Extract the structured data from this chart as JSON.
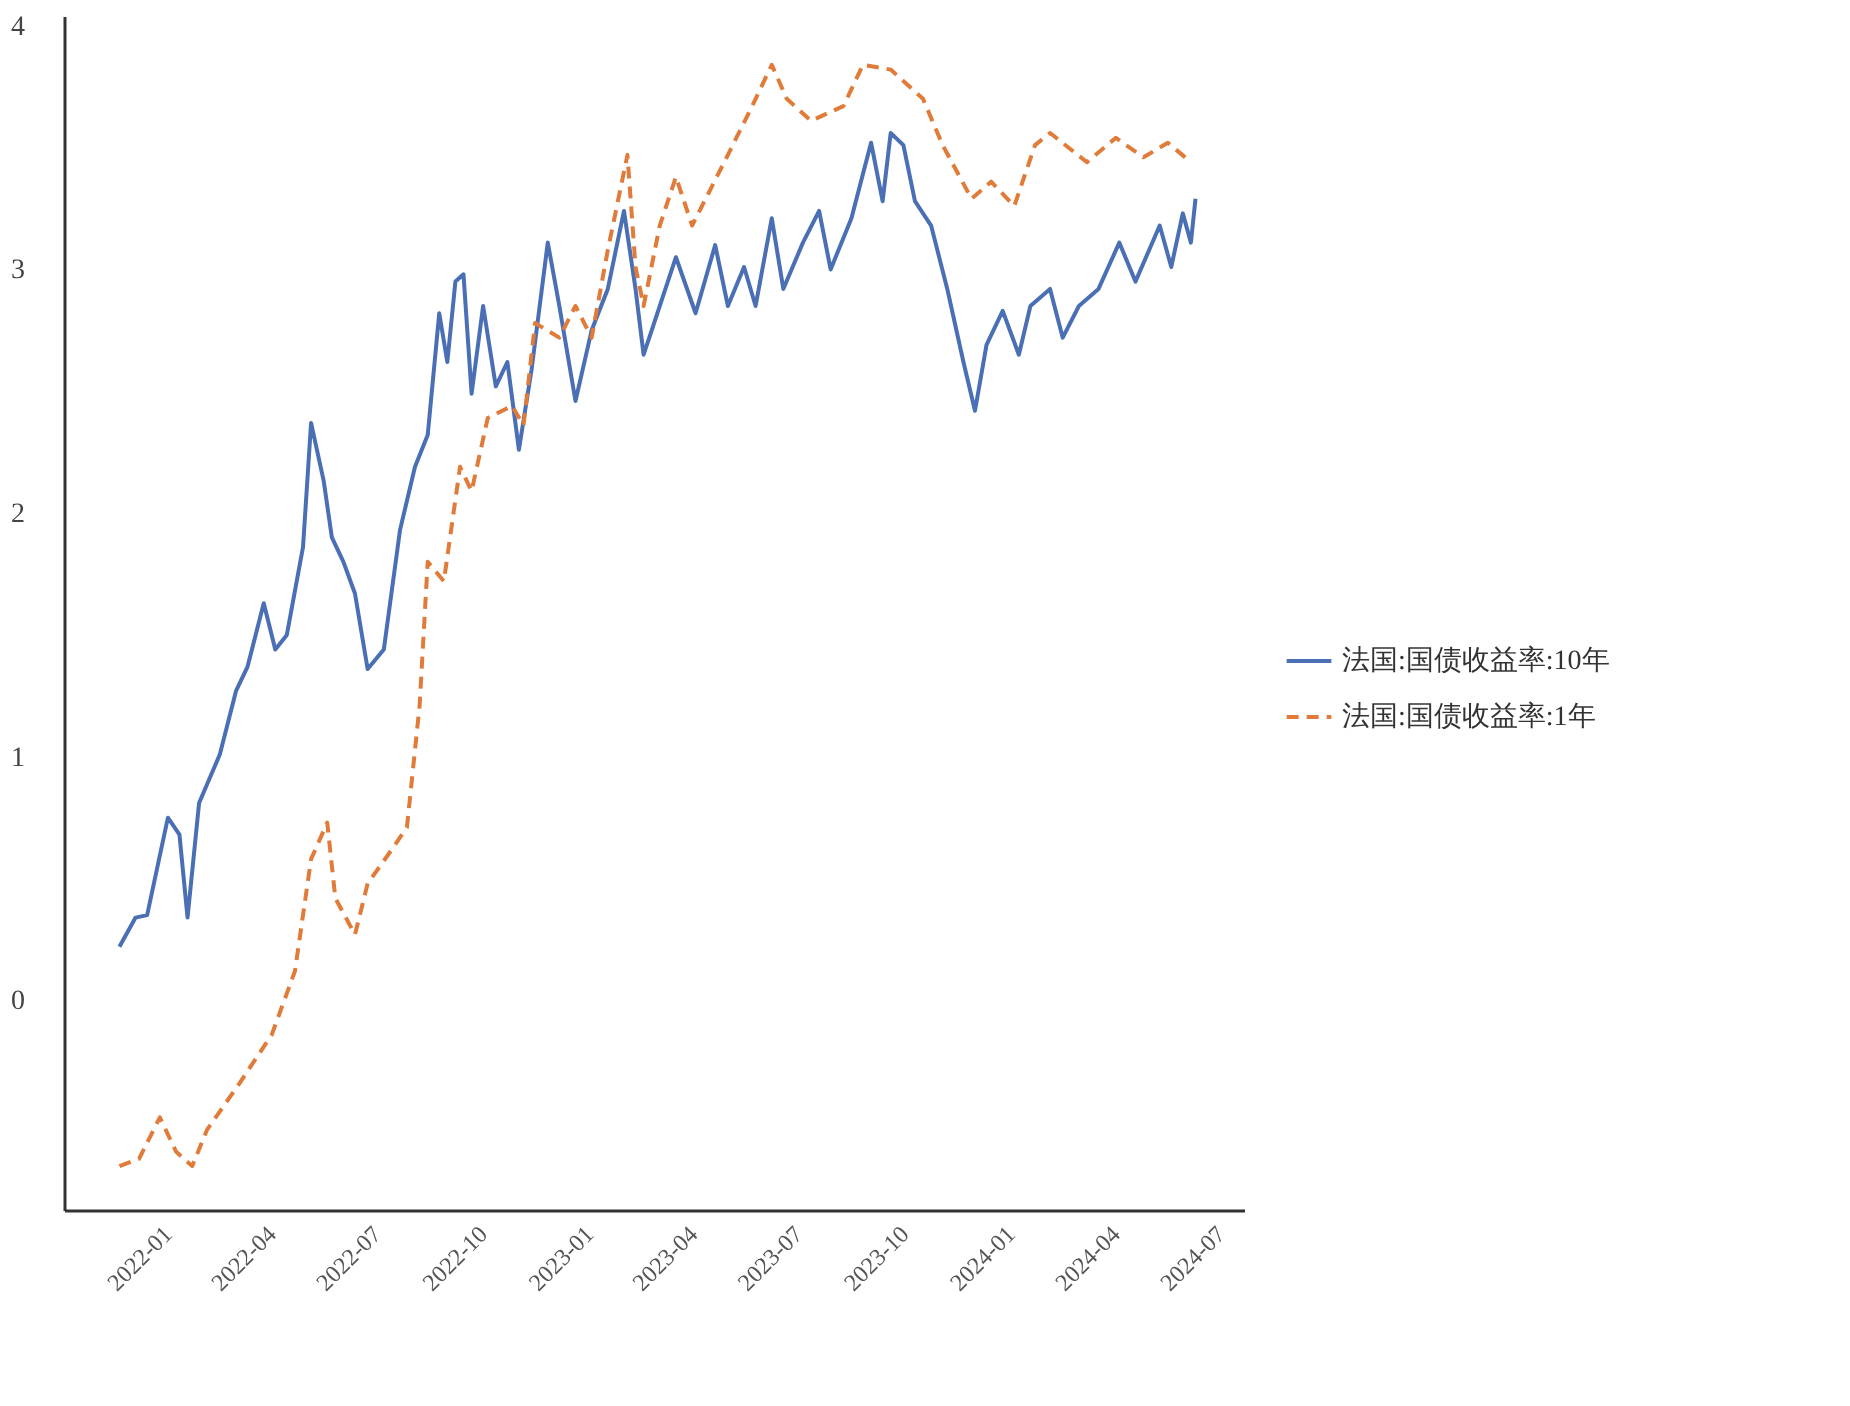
{
  "chart_data": {
    "type": "line",
    "legend": "right",
    "grid": false,
    "marker": "none",
    "xlim": [
      "2021-10-10",
      "2024-07-28"
    ],
    "xticks": [
      "2022-01",
      "2022-04",
      "2022-07",
      "2022-10",
      "2023-01",
      "2023-04",
      "2023-07",
      "2023-10",
      "2024-01",
      "2024-04",
      "2024-07"
    ],
    "ylim": [
      -0.86,
      4.04
    ],
    "yticks": [
      0,
      1,
      2,
      3,
      4
    ],
    "series": [
      {
        "name": "法国:国债收益率:10年",
        "color": "#4a6fb5",
        "line_style": "solid",
        "x": [
          "2021-11-27",
          "2021-12-11",
          "2021-12-21",
          "2022-01-08",
          "2022-01-18",
          "2022-01-25",
          "2022-02-04",
          "2022-02-22",
          "2022-03-08",
          "2022-03-18",
          "2022-04-01",
          "2022-04-11",
          "2022-04-21",
          "2022-05-05",
          "2022-05-12",
          "2022-05-23",
          "2022-05-30",
          "2022-06-09",
          "2022-06-19",
          "2022-06-30",
          "2022-07-14",
          "2022-07-28",
          "2022-08-10",
          "2022-08-21",
          "2022-08-31",
          "2022-09-07",
          "2022-09-14",
          "2022-09-21",
          "2022-09-28",
          "2022-10-08",
          "2022-10-19",
          "2022-10-29",
          "2022-11-08",
          "2022-11-19",
          "2022-12-03",
          "2022-12-13",
          "2022-12-27",
          "2023-01-10",
          "2023-01-24",
          "2023-02-07",
          "2023-02-17",
          "2023-02-24",
          "2023-03-03",
          "2023-03-24",
          "2023-04-10",
          "2023-04-27",
          "2023-05-08",
          "2023-05-22",
          "2023-06-01",
          "2023-06-15",
          "2023-06-25",
          "2023-07-12",
          "2023-07-26",
          "2023-08-05",
          "2023-08-23",
          "2023-09-09",
          "2023-09-19",
          "2023-09-26",
          "2023-10-07",
          "2023-10-17",
          "2023-10-31",
          "2023-11-14",
          "2023-11-28",
          "2023-12-08",
          "2023-12-18",
          "2024-01-01",
          "2024-01-15",
          "2024-01-25",
          "2024-02-11",
          "2024-02-22",
          "2024-03-07",
          "2024-03-24",
          "2024-04-11",
          "2024-04-25",
          "2024-05-16",
          "2024-05-26",
          "2024-06-05",
          "2024-06-12",
          "2024-06-16"
        ],
        "values": [
          0.22,
          0.34,
          0.35,
          0.75,
          0.68,
          0.34,
          0.81,
          1.01,
          1.27,
          1.37,
          1.63,
          1.44,
          1.5,
          1.86,
          2.37,
          2.13,
          1.9,
          1.8,
          1.67,
          1.36,
          1.44,
          1.93,
          2.19,
          2.32,
          2.82,
          2.62,
          2.95,
          2.98,
          2.49,
          2.85,
          2.52,
          2.62,
          2.26,
          2.59,
          3.11,
          2.85,
          2.46,
          2.75,
          2.92,
          3.24,
          2.92,
          2.65,
          2.75,
          3.05,
          2.82,
          3.1,
          2.85,
          3.01,
          2.85,
          3.21,
          2.92,
          3.11,
          3.24,
          3.0,
          3.21,
          3.52,
          3.28,
          3.56,
          3.51,
          3.28,
          3.18,
          2.92,
          2.62,
          2.42,
          2.69,
          2.83,
          2.65,
          2.85,
          2.92,
          2.72,
          2.85,
          2.92,
          3.11,
          2.95,
          3.18,
          3.01,
          3.23,
          3.11,
          3.29
        ]
      },
      {
        "name": "法国:国债收益率:1年",
        "color": "#e07b39",
        "line_style": "dashed",
        "x": [
          "2021-11-27",
          "2021-12-14",
          "2022-01-01",
          "2022-01-15",
          "2022-01-29",
          "2022-02-11",
          "2022-03-11",
          "2022-04-08",
          "2022-04-28",
          "2022-05-12",
          "2022-05-26",
          "2022-06-02",
          "2022-06-19",
          "2022-06-30",
          "2022-07-21",
          "2022-08-03",
          "2022-08-14",
          "2022-08-21",
          "2022-09-04",
          "2022-09-18",
          "2022-09-28",
          "2022-10-12",
          "2022-11-02",
          "2022-11-12",
          "2022-11-22",
          "2022-12-13",
          "2022-12-27",
          "2023-01-10",
          "2023-01-24",
          "2023-02-10",
          "2023-02-17",
          "2023-02-24",
          "2023-03-10",
          "2023-03-24",
          "2023-04-07",
          "2023-05-08",
          "2023-05-29",
          "2023-06-15",
          "2023-06-28",
          "2023-07-19",
          "2023-08-16",
          "2023-09-02",
          "2023-09-26",
          "2023-10-24",
          "2023-11-10",
          "2023-12-05",
          "2023-12-22",
          "2024-01-11",
          "2024-01-29",
          "2024-02-11",
          "2024-03-14",
          "2024-04-08",
          "2024-05-02",
          "2024-05-23",
          "2024-06-12"
        ],
        "values": [
          -0.68,
          -0.65,
          -0.48,
          -0.62,
          -0.68,
          -0.53,
          -0.34,
          -0.14,
          0.12,
          0.58,
          0.73,
          0.42,
          0.27,
          0.48,
          0.62,
          0.71,
          1.21,
          1.8,
          1.72,
          2.19,
          2.09,
          2.39,
          2.44,
          2.36,
          2.78,
          2.72,
          2.85,
          2.72,
          3.08,
          3.47,
          3.01,
          2.85,
          3.18,
          3.38,
          3.18,
          3.47,
          3.67,
          3.84,
          3.7,
          3.61,
          3.67,
          3.84,
          3.82,
          3.7,
          3.51,
          3.29,
          3.36,
          3.26,
          3.51,
          3.56,
          3.44,
          3.54,
          3.46,
          3.52,
          3.44
        ]
      }
    ]
  }
}
